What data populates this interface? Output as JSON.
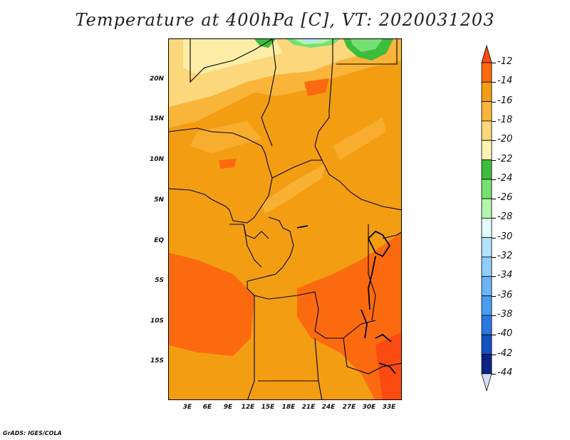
{
  "title": "Temperature at 400hPa [C], VT: 2020031203",
  "credit": "GrADS: IGES/COLA",
  "map": {
    "lat_labels": [
      "20N",
      "15N",
      "10N",
      "5N",
      "EQ",
      "5S",
      "10S",
      "15S"
    ],
    "lon_labels": [
      "3E",
      "6E",
      "9E",
      "12E",
      "15E",
      "18E",
      "21E",
      "24E",
      "27E",
      "30E",
      "33E"
    ],
    "background_field_color": "#f39e12"
  },
  "colorbar": {
    "labels": [
      "-12",
      "-14",
      "-16",
      "-18",
      "-20",
      "-22",
      "-24",
      "-26",
      "-28",
      "-30",
      "-32",
      "-34",
      "-36",
      "-38",
      "-40",
      "-42",
      "-44"
    ],
    "colors": [
      "#fb4b13",
      "#fc6a10",
      "#f39e12",
      "#f9b43a",
      "#fcd77b",
      "#fdf2b1",
      "#3dbd3d",
      "#76e173",
      "#b2f6ab",
      "#e4fbfb",
      "#b3e3fc",
      "#8fcdfb",
      "#6cb4f3",
      "#4a9ef2",
      "#2b78e4",
      "#1550c4",
      "#0c2584",
      "#d9dcf5"
    ]
  }
}
